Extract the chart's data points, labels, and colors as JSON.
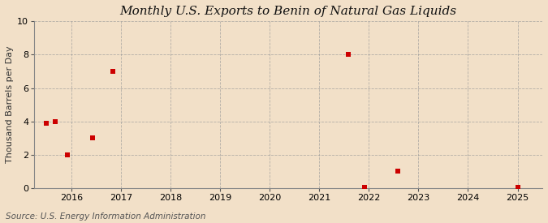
{
  "title": "Monthly U.S. Exports to Benin of Natural Gas Liquids",
  "ylabel": "Thousand Barrels per Day",
  "source": "Source: U.S. Energy Information Administration",
  "background_color": "#f2e0c8",
  "plot_background": "#f2e0c8",
  "xlim": [
    2015.25,
    2025.5
  ],
  "ylim": [
    0,
    10
  ],
  "yticks": [
    0,
    2,
    4,
    6,
    8,
    10
  ],
  "xticks": [
    2016,
    2017,
    2018,
    2019,
    2020,
    2021,
    2022,
    2023,
    2024,
    2025
  ],
  "data_x": [
    2015.5,
    2015.67,
    2015.92,
    2016.42,
    2016.83,
    2021.58,
    2021.92,
    2022.58,
    2025.0
  ],
  "data_y": [
    3.9,
    4.0,
    2.0,
    3.0,
    7.0,
    8.0,
    0.05,
    1.0,
    0.05
  ],
  "marker_color": "#cc0000",
  "marker_size": 4,
  "grid_color": "#999999",
  "grid_style": "--",
  "title_fontsize": 11,
  "label_fontsize": 8,
  "tick_fontsize": 8,
  "source_fontsize": 7.5
}
